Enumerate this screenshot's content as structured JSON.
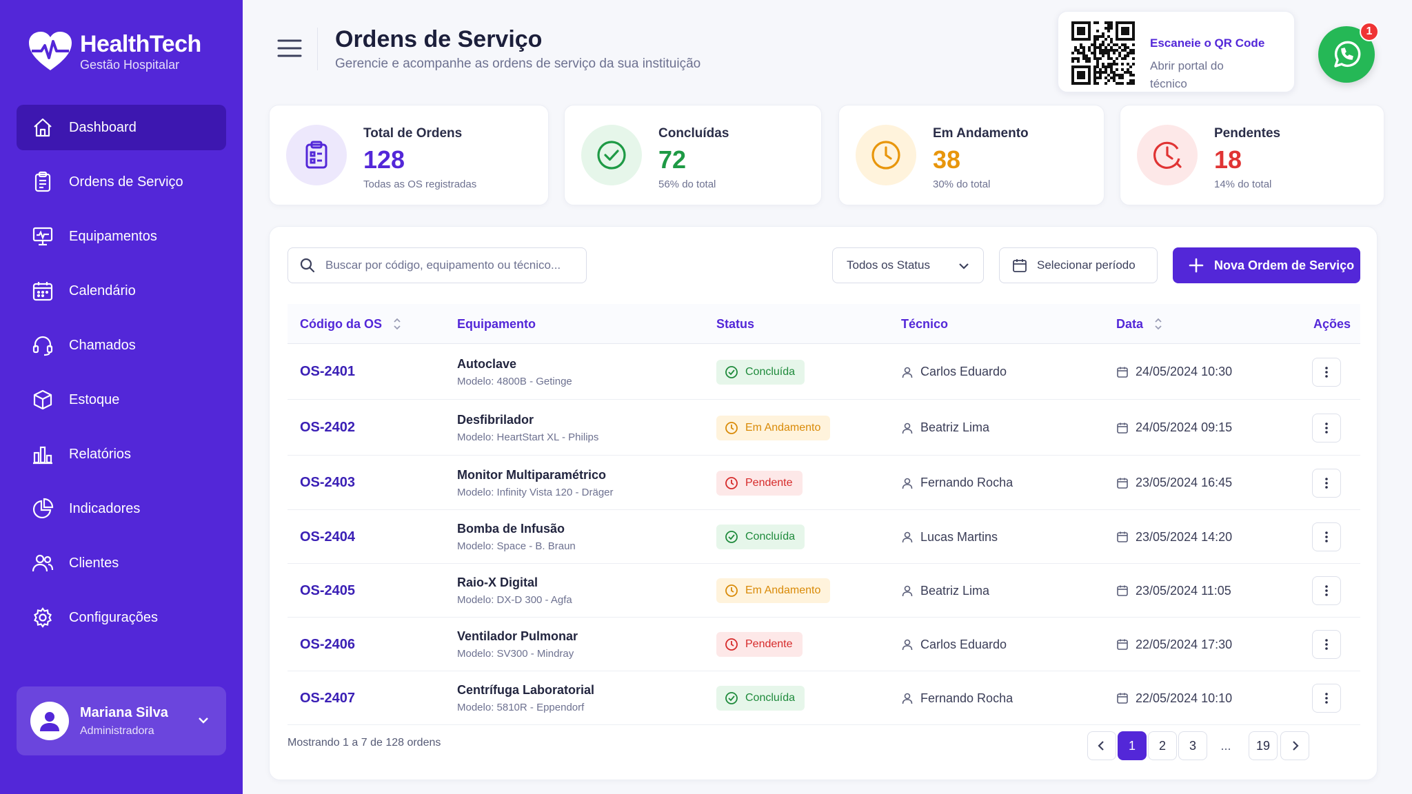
{
  "brand": {
    "title": "HealthTech",
    "subtitle": "Gestão Hospitalar"
  },
  "sidebar": {
    "items": [
      {
        "label": "Dashboard",
        "icon": "home-icon",
        "active": true
      },
      {
        "label": "Ordens de Serviço",
        "icon": "clipboard-icon"
      },
      {
        "label": "Equipamentos",
        "icon": "monitor-icon"
      },
      {
        "label": "Calendário",
        "icon": "calendar-icon"
      },
      {
        "label": "Chamados",
        "icon": "headset-icon"
      },
      {
        "label": "Estoque",
        "icon": "box-icon"
      },
      {
        "label": "Relatórios",
        "icon": "report-icon"
      },
      {
        "label": "Indicadores",
        "icon": "pie-chart-icon"
      },
      {
        "label": "Clientes",
        "icon": "users-icon"
      },
      {
        "label": "Configurações",
        "icon": "gear-icon"
      }
    ],
    "user": {
      "name": "Mariana Silva",
      "role": "Administradora"
    }
  },
  "header": {
    "title": "Ordens de Serviço",
    "subtitle": "Gerencie e acompanhe as ordens de serviço da sua instituição",
    "qr": {
      "title": "Escaneie o QR Code",
      "subtitle": "Abrir portal do técnico"
    },
    "whatsapp_badge": "1"
  },
  "stats": [
    {
      "label": "Total de Ordens",
      "value": "128",
      "note": "Todas as OS registradas",
      "color": "#5327d8"
    },
    {
      "label": "Concluídas",
      "value": "72",
      "note": "56% do total",
      "color": "#1e9a45"
    },
    {
      "label": "Em Andamento",
      "value": "38",
      "note": "30% do total",
      "color": "#e8960c"
    },
    {
      "label": "Pendentes",
      "value": "18",
      "note": "14% do total",
      "color": "#e03434"
    }
  ],
  "toolbar": {
    "search_placeholder": "Buscar por código, equipamento ou técnico...",
    "status_filter": "Todos os Status",
    "period": "Selecionar período",
    "new_label": "Nova Ordem de Serviço"
  },
  "table": {
    "headers": {
      "code": "Código da OS",
      "equipment": "Equipamento",
      "status": "Status",
      "tech": "Técnico",
      "date": "Data",
      "actions": "Ações"
    },
    "rows": [
      {
        "code": "OS-2401",
        "equipment": "Autoclave",
        "model": "Modelo: 4800B - Getinge",
        "status": "Concluída",
        "type": "done",
        "tech": "Carlos Eduardo",
        "date": "24/05/2024 10:30"
      },
      {
        "code": "OS-2402",
        "equipment": "Desfibrilador",
        "model": "Modelo: HeartStart XL - Philips",
        "status": "Em Andamento",
        "type": "prog",
        "tech": "Beatriz Lima",
        "date": "24/05/2024 09:15"
      },
      {
        "code": "OS-2403",
        "equipment": "Monitor Multiparamétrico",
        "model": "Modelo: Infinity Vista 120 - Dräger",
        "status": "Pendente",
        "type": "pend",
        "tech": "Fernando Rocha",
        "date": "23/05/2024 16:45"
      },
      {
        "code": "OS-2404",
        "equipment": "Bomba de Infusão",
        "model": "Modelo: Space - B. Braun",
        "status": "Concluída",
        "type": "done",
        "tech": "Lucas Martins",
        "date": "23/05/2024 14:20"
      },
      {
        "code": "OS-2405",
        "equipment": "Raio-X Digital",
        "model": "Modelo: DX-D 300 - Agfa",
        "status": "Em Andamento",
        "type": "prog",
        "tech": "Beatriz Lima",
        "date": "23/05/2024 11:05"
      },
      {
        "code": "OS-2406",
        "equipment": "Ventilador Pulmonar",
        "model": "Modelo: SV300 - Mindray",
        "status": "Pendente",
        "type": "pend",
        "tech": "Carlos Eduardo",
        "date": "22/05/2024 17:30"
      },
      {
        "code": "OS-2407",
        "equipment": "Centrífuga Laboratorial",
        "model": "Modelo: 5810R - Eppendorf",
        "status": "Concluída",
        "type": "done",
        "tech": "Fernando Rocha",
        "date": "22/05/2024 10:10"
      }
    ]
  },
  "pagination": {
    "showing": "Mostrando 1 a 7 de 128 ordens",
    "pages": [
      "1",
      "2",
      "3"
    ],
    "dots": "...",
    "last": "19"
  }
}
